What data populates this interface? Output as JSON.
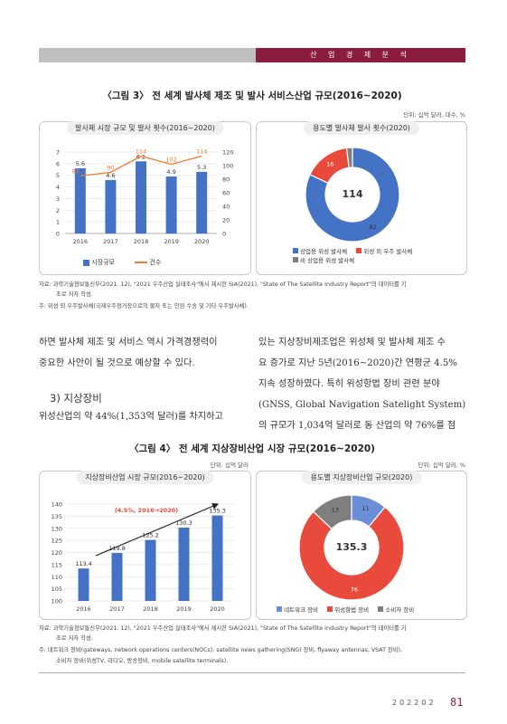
{
  "header": {
    "section": "산 업 경 제 분 석"
  },
  "fig3": {
    "caption": "〈그림 3〉 전 세계 발사체 제조 및 발사 서비스산업 규모(2016~2020)",
    "unit": "단위: 십억 달러, 대수, %",
    "left_title": "발사체 시장 규모 및 발사 횟수(2016~2020)",
    "right_title": "용도별 발사체 발사 횟수(2020)",
    "legend_bar": "시장규모",
    "legend_line": "건수",
    "pie_center": "114",
    "pie_legend": [
      "상업용 위성 발사체",
      "위성 외 우주 발사체",
      "비 상업용 위성 발사체"
    ],
    "source": "자료: 과학기술정보통신부(2021. 12), \"2021 우주산업 실태조사\"에서 제시한 SIA(2021), \"State of The Satellite Industry Report\"의 데이터를 기",
    "source2": "초로 저자 작성.",
    "note": "주: 위성 외 우주발사체(국제우주정거장으로의 물자 또는 인원 수송 및 기타 우주발사체)."
  },
  "body": {
    "left1": "하면 발사체 제조 및 서비스 역시 가격경쟁력이",
    "left2": "중요한 사안이 될 것으로 예상할 수 있다.",
    "section_title": "3) 지상장비",
    "left3": "위성산업의 약 44%(1,353억 달러)를 차지하고",
    "right1": "있는 지상장비제조업은 위성체 및 발사체 제조 수",
    "right2": "요 증가로 지난 5년(2016~2020)간 연평균 4.5%",
    "right3": "지속 성장하였다. 특히 위성항법 장비 관련 분야",
    "right4": "(GNSS, Global Navigation Satelight System)",
    "right5": "의 규모가 1,034억 달러로 동 산업의 약 76%를 점"
  },
  "fig4": {
    "caption": "〈그림 4〉 전 세계 지상장비산업 시장 규모(2016~2020)",
    "unit_left": "단위: 십억 달러",
    "unit_right": "단위: 십억 달러, %",
    "left_title": "지상장비산업 시장 규모(2016~2020)",
    "right_title": "용도별 지상장비산업 규모(2020)",
    "growth_label": "(4.5%, 2016→2020)",
    "pie_center": "135.3",
    "pie_legend": [
      "네트워크 장비",
      "위성항법 장비",
      "소비자 장비"
    ],
    "source": "자료: 과학기술정보통신부(2021. 12), \"2021 우주산업 실태조사\"에서 제시한 SIA(2021), \"State of The Satellite Industry Report\"의 데이터를 기",
    "source2": "초로 저자 작성.",
    "note1": "주: 네트워크 장비(gateways, network operations centers(NOCs), satellite news gathering(SNG) 장비, flyaway antennas, VSAT 장비),",
    "note2": "소비자 장비(위성TV, 라디오, 방송장비, mobile satellite terminals)."
  },
  "footer": {
    "issue": "202202",
    "page": "81"
  },
  "colors": {
    "accent": "#8a1d3c",
    "blue": "#4472c4",
    "orange": "#ed7d31",
    "red": "#e84b3c",
    "gray": "#7f7f7f"
  },
  "chart_data": [
    {
      "type": "bar",
      "title": "발사체 시장 규모 및 발사 횟수(2016~2020)",
      "categories": [
        "2016",
        "2017",
        "2018",
        "2019",
        "2020"
      ],
      "series": [
        {
          "name": "시장규모",
          "type": "bar",
          "values": [
            5.6,
            4.6,
            6.2,
            4.9,
            5.3
          ],
          "axis": "left"
        },
        {
          "name": "건수",
          "type": "line",
          "values": [
            85,
            90,
            114,
            102,
            114
          ],
          "axis": "right"
        }
      ],
      "ylim": [
        0,
        7
      ],
      "y2lim": [
        0,
        120
      ],
      "yticks": [
        0,
        1,
        2,
        3,
        4,
        5,
        6,
        7
      ],
      "y2ticks": [
        0,
        20,
        40,
        60,
        80,
        100,
        120
      ],
      "legend": "bottom"
    },
    {
      "type": "pie",
      "title": "용도별 발사체 발사 횟수(2020)",
      "categories": [
        "상업용 위성 발사체",
        "위성 외 우주 발사체",
        "비 상업용 위성 발사체"
      ],
      "values": [
        82,
        16,
        2
      ],
      "center": "114",
      "colors": [
        "#4472c4",
        "#e84b3c",
        "#7f7f7f"
      ],
      "labels": [
        "82",
        "16",
        ""
      ],
      "legend": "bottom"
    },
    {
      "type": "bar",
      "title": "지상장비산업 시장 규모(2016~2020)",
      "categories": [
        "2016",
        "2017",
        "2018",
        "2019",
        "2020"
      ],
      "values": [
        113.4,
        119.8,
        125.2,
        130.3,
        135.3
      ],
      "ylim": [
        100,
        140
      ],
      "yticks": [
        100,
        105,
        110,
        115,
        120,
        125,
        130,
        135,
        140
      ],
      "annotation": "(4.5%, 2016→2020)"
    },
    {
      "type": "pie",
      "title": "용도별 지상장비산업 규모(2020)",
      "categories": [
        "네트워크 장비",
        "위성항법 장비",
        "소비자 장비"
      ],
      "values": [
        11,
        76,
        13
      ],
      "center": "135.3",
      "colors": [
        "#6a8fd8",
        "#e84b3c",
        "#7f7f7f"
      ],
      "labels": [
        "11",
        "76",
        "13"
      ],
      "legend": "bottom"
    }
  ]
}
